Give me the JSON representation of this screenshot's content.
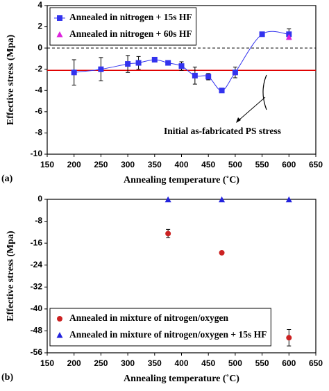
{
  "chart_data": [
    {
      "type": "line",
      "label": "(a)",
      "xlabel": "Annealing temperature (˚C)",
      "ylabel": "Effective stress (Mpa)",
      "xlim": [
        150,
        650
      ],
      "xticks": [
        150,
        200,
        250,
        300,
        350,
        400,
        450,
        500,
        550,
        600,
        650
      ],
      "ylim": [
        -10,
        4
      ],
      "yticks": [
        -10,
        -8,
        -6,
        -4,
        -2,
        0,
        2,
        4
      ],
      "legend": "upper left",
      "reference_lines": [
        {
          "value": 0,
          "style": "dashed",
          "color": "#000000"
        },
        {
          "value": -2.1,
          "style": "solid",
          "color": "#e00000"
        }
      ],
      "annotation": "Initial as-fabricated PS stress",
      "series": [
        {
          "name": "Annealed in nitrogen + 15s HF",
          "color": "#3333ee",
          "marker": "square",
          "line": true,
          "x": [
            200,
            250,
            300,
            320,
            350,
            375,
            400,
            425,
            450,
            475,
            500,
            550,
            600
          ],
          "values": [
            -2.3,
            -2.0,
            -1.5,
            -1.4,
            -1.1,
            -1.4,
            -1.7,
            -2.6,
            -2.7,
            -4.0,
            -2.3,
            1.3,
            1.3
          ],
          "errors": [
            1.2,
            1.1,
            0.8,
            0.6,
            0.1,
            0.1,
            0.4,
            0.8,
            0.3,
            0.1,
            0.5,
            0.1,
            0.5
          ]
        },
        {
          "name": "Annealed in nitrogen + 60s HF",
          "color": "#dd22dd",
          "marker": "triangle",
          "line": false,
          "x": [
            600
          ],
          "values": [
            1.0
          ],
          "errors": [
            0
          ]
        }
      ]
    },
    {
      "type": "scatter",
      "label": "(b)",
      "xlabel": "Annealing temperature (˚C)",
      "ylabel": "Effective stress (Mpa)",
      "xlim": [
        150,
        650
      ],
      "xticks": [
        150,
        200,
        250,
        300,
        350,
        400,
        450,
        500,
        550,
        600,
        650
      ],
      "ylim": [
        -56,
        0
      ],
      "yticks": [
        -56,
        -48,
        -40,
        -32,
        -24,
        -16,
        -8,
        0
      ],
      "legend": "lower left",
      "reference_lines": [
        {
          "value": 0,
          "style": "dashed",
          "color": "#000000"
        }
      ],
      "series": [
        {
          "name": "Annealed in mixture of nitrogen/oxygen",
          "color": "#cc2222",
          "marker": "circle",
          "line": false,
          "x": [
            375,
            475,
            600
          ],
          "values": [
            -12.5,
            -19.5,
            -50.5
          ],
          "errors": [
            1.5,
            0,
            3
          ]
        },
        {
          "name": "Annealed in mixture of nitrogen/oxygen + 15s HF",
          "color": "#2222dd",
          "marker": "triangle",
          "line": false,
          "x": [
            375,
            475,
            600
          ],
          "values": [
            -0.2,
            -0.2,
            -0.2
          ],
          "errors": [
            0,
            0,
            0
          ]
        }
      ]
    }
  ]
}
